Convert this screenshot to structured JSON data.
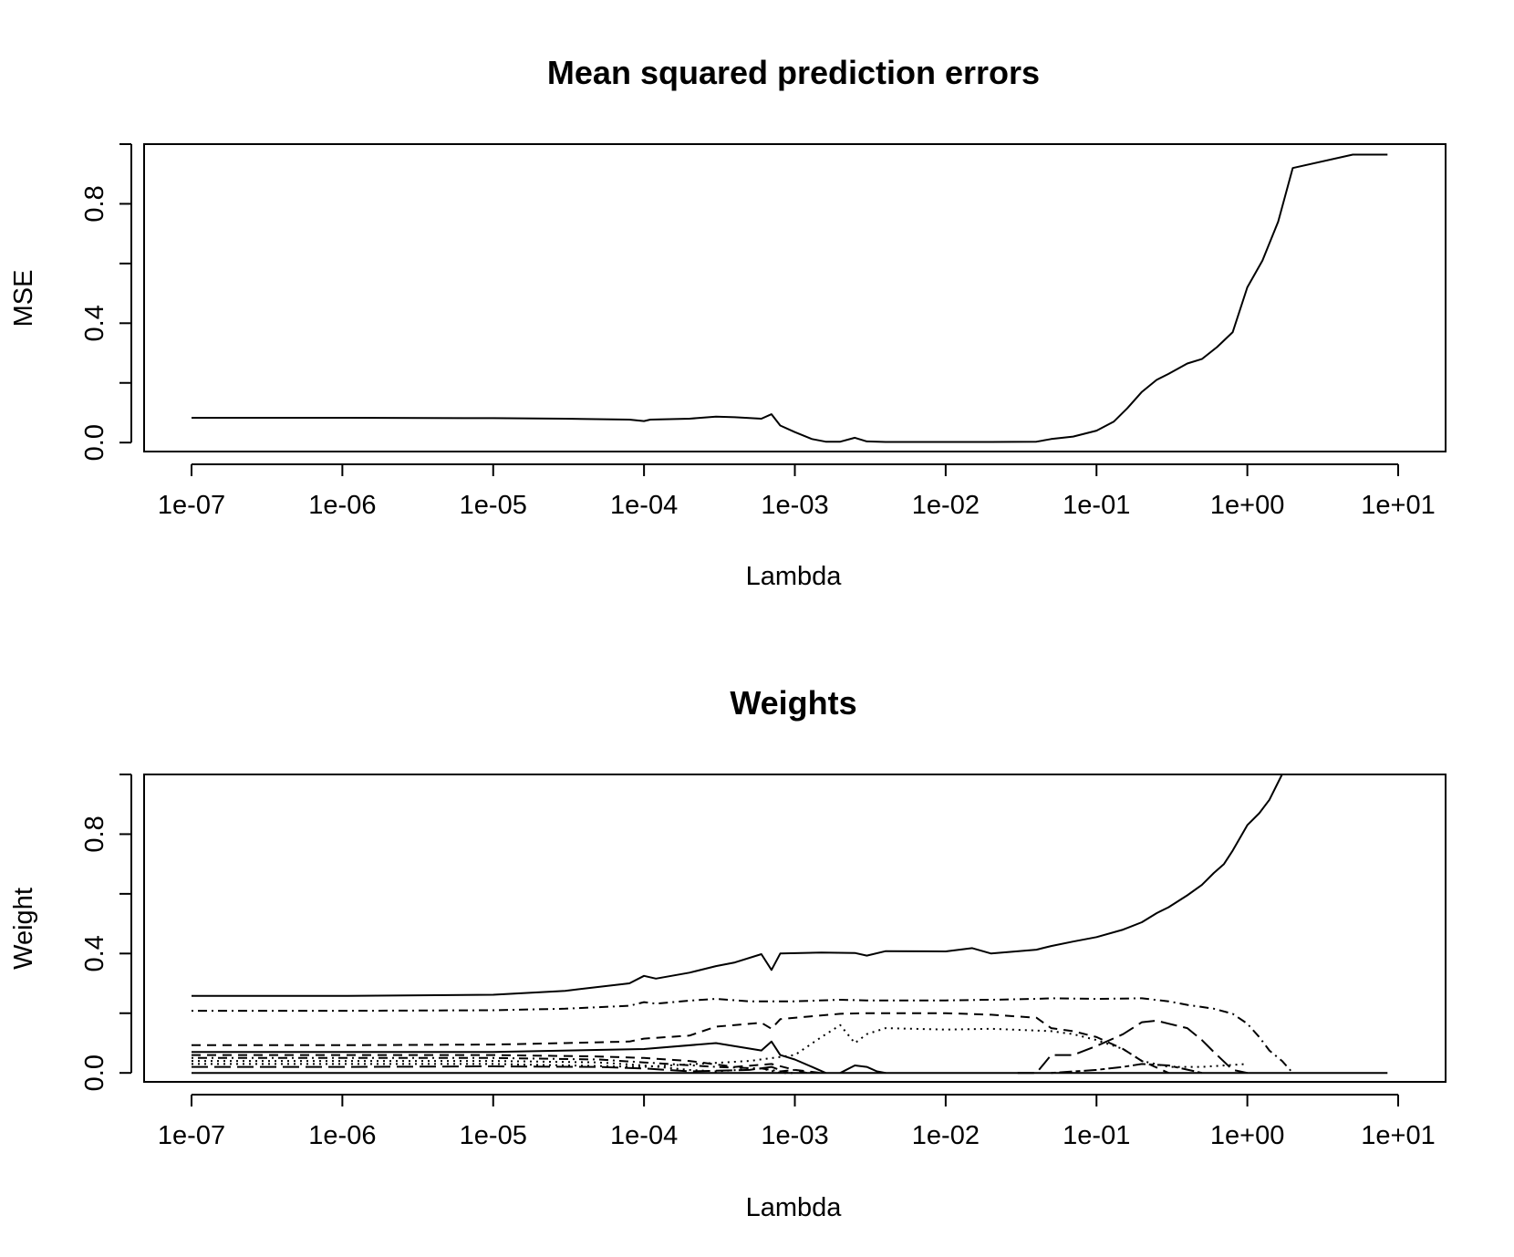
{
  "chart_data": [
    {
      "type": "line",
      "title": "Mean squared prediction errors",
      "xlabel": "Lambda",
      "ylabel": "MSE",
      "xscale": "log10",
      "xlim": [
        1e-07,
        10
      ],
      "ylim": [
        -0.03,
        1.0
      ],
      "xticks": [
        1e-07,
        1e-06,
        1e-05,
        0.0001,
        0.001,
        0.01,
        0.1,
        1,
        10
      ],
      "xtick_labels": [
        "1e-07",
        "1e-06",
        "1e-05",
        "1e-04",
        "1e-03",
        "1e-02",
        "1e-01",
        "1e+00",
        "1e+01"
      ],
      "yticks": [
        0.0,
        0.2,
        0.4,
        0.6,
        0.8,
        1.0
      ],
      "ytick_labels": [
        "0.0",
        "",
        "0.4",
        "",
        "0.8",
        ""
      ],
      "grid": false,
      "series": [
        {
          "line_style": "solid",
          "x": [
            1e-07,
            1e-06,
            1e-05,
            3e-05,
            8e-05,
            0.0001,
            0.00011,
            0.0002,
            0.0003,
            0.0004,
            0.0006,
            0.0007,
            0.0008,
            0.001,
            0.0013,
            0.0016,
            0.002,
            0.0025,
            0.003,
            0.004,
            0.01,
            0.02,
            0.04,
            0.05,
            0.07,
            0.1,
            0.13,
            0.16,
            0.2,
            0.25,
            0.3,
            0.4,
            0.5,
            0.63,
            0.8,
            1.0,
            1.26,
            1.6,
            2.0,
            5.0,
            8.5
          ],
          "y": [
            0.083,
            0.083,
            0.082,
            0.08,
            0.077,
            0.072,
            0.077,
            0.08,
            0.087,
            0.085,
            0.08,
            0.095,
            0.057,
            0.035,
            0.012,
            0.003,
            0.003,
            0.016,
            0.004,
            0.002,
            0.002,
            0.002,
            0.003,
            0.012,
            0.02,
            0.04,
            0.07,
            0.115,
            0.17,
            0.21,
            0.23,
            0.265,
            0.28,
            0.32,
            0.37,
            0.52,
            0.61,
            0.74,
            0.92,
            0.965,
            0.965
          ]
        }
      ]
    },
    {
      "type": "line",
      "title": "Weights",
      "xlabel": "Lambda",
      "ylabel": "Weight",
      "xscale": "log10",
      "xlim": [
        1e-07,
        10
      ],
      "ylim": [
        -0.03,
        1.0
      ],
      "xticks": [
        1e-07,
        1e-06,
        1e-05,
        0.0001,
        0.001,
        0.01,
        0.1,
        1,
        10
      ],
      "xtick_labels": [
        "1e-07",
        "1e-06",
        "1e-05",
        "1e-04",
        "1e-03",
        "1e-02",
        "1e-01",
        "1e+00",
        "1e+01"
      ],
      "yticks": [
        0.0,
        0.2,
        0.4,
        0.6,
        0.8,
        1.0
      ],
      "ytick_labels": [
        "0.0",
        "",
        "0.4",
        "",
        "0.8",
        ""
      ],
      "grid": false,
      "series": [
        {
          "line_style": "solid",
          "x": [
            1e-07,
            1e-06,
            1e-05,
            3e-05,
            8e-05,
            0.0001,
            0.00012,
            0.0002,
            0.0003,
            0.0004,
            0.0006,
            0.0007,
            0.0008,
            0.0015,
            0.0025,
            0.003,
            0.004,
            0.01,
            0.015,
            0.02,
            0.04,
            0.05,
            0.07,
            0.1,
            0.15,
            0.2,
            0.25,
            0.3,
            0.4,
            0.5,
            0.6,
            0.7,
            0.8,
            1.0,
            1.2,
            1.4,
            1.7,
            2.0,
            5.0,
            8.5
          ],
          "y": [
            0.258,
            0.258,
            0.262,
            0.275,
            0.3,
            0.325,
            0.316,
            0.336,
            0.358,
            0.37,
            0.398,
            0.345,
            0.4,
            0.403,
            0.402,
            0.393,
            0.408,
            0.407,
            0.418,
            0.4,
            0.413,
            0.425,
            0.44,
            0.455,
            0.48,
            0.505,
            0.535,
            0.555,
            0.595,
            0.63,
            0.67,
            0.7,
            0.745,
            0.83,
            0.87,
            0.915,
            1.0,
            1.0,
            1.0,
            1.0
          ]
        },
        {
          "line_style": "dotdash",
          "x": [
            1e-07,
            1e-06,
            1e-05,
            3e-05,
            8e-05,
            0.0001,
            0.00012,
            0.0002,
            0.0003,
            0.0005,
            0.001,
            0.002,
            0.003,
            0.01,
            0.02,
            0.04,
            0.05,
            0.1,
            0.2,
            0.3,
            0.4,
            0.6,
            0.8,
            1.0,
            1.2,
            1.4,
            1.7,
            2.0
          ],
          "y": [
            0.208,
            0.208,
            0.21,
            0.215,
            0.225,
            0.237,
            0.232,
            0.242,
            0.248,
            0.24,
            0.24,
            0.245,
            0.243,
            0.243,
            0.245,
            0.248,
            0.25,
            0.248,
            0.25,
            0.24,
            0.228,
            0.215,
            0.198,
            0.165,
            0.12,
            0.075,
            0.04,
            0.0
          ]
        },
        {
          "line_style": "dashed",
          "x": [
            1e-07,
            1e-06,
            1e-05,
            3e-05,
            8e-05,
            0.0001,
            0.0002,
            0.0003,
            0.0006,
            0.0007,
            0.0008,
            0.001,
            0.002,
            0.003,
            0.01,
            0.02,
            0.04,
            0.05,
            0.07,
            0.1,
            0.15,
            0.2,
            0.3
          ],
          "y": [
            0.093,
            0.093,
            0.095,
            0.1,
            0.105,
            0.115,
            0.125,
            0.155,
            0.168,
            0.148,
            0.18,
            0.185,
            0.198,
            0.2,
            0.2,
            0.195,
            0.185,
            0.15,
            0.14,
            0.12,
            0.08,
            0.04,
            0.0
          ]
        },
        {
          "line_style": "dotted",
          "x": [
            1e-07,
            1e-06,
            1e-05,
            0.0001,
            0.0005,
            0.001,
            0.0015,
            0.002,
            0.0025,
            0.003,
            0.004,
            0.01,
            0.02,
            0.05,
            0.07,
            0.1,
            0.15,
            0.2,
            0.3,
            0.5,
            1.0
          ],
          "y": [
            0.03,
            0.03,
            0.03,
            0.02,
            0.04,
            0.06,
            0.12,
            0.16,
            0.1,
            0.13,
            0.15,
            0.145,
            0.148,
            0.14,
            0.13,
            0.11,
            0.08,
            0.04,
            0.02,
            0.02,
            0.03
          ]
        },
        {
          "line_style": "solid",
          "x": [
            1e-07,
            1e-06,
            1e-05,
            0.0001,
            0.0003,
            0.0006,
            0.0007,
            0.0008,
            0.001,
            0.0013,
            0.0016
          ],
          "y": [
            0.07,
            0.07,
            0.07,
            0.08,
            0.1,
            0.075,
            0.105,
            0.06,
            0.045,
            0.02,
            0.0
          ]
        },
        {
          "line_style": "longdash",
          "x": [
            0.03,
            0.04,
            0.05,
            0.07,
            0.1,
            0.15,
            0.2,
            0.25,
            0.3,
            0.4,
            0.5,
            0.6,
            0.8,
            1.0
          ],
          "y": [
            0.0,
            0.0,
            0.06,
            0.06,
            0.09,
            0.13,
            0.17,
            0.175,
            0.165,
            0.15,
            0.11,
            0.07,
            0.01,
            0.0
          ]
        },
        {
          "line_style": "twodash",
          "x": [
            0.05,
            0.1,
            0.15,
            0.2,
            0.3,
            0.5
          ],
          "y": [
            0.0,
            0.01,
            0.02,
            0.03,
            0.025,
            0.0
          ]
        },
        {
          "line_style": "dashed",
          "x": [
            1e-07,
            1e-06,
            1e-05,
            5e-05,
            0.0001,
            0.0002,
            0.0004,
            0.0007,
            0.001,
            0.0015
          ],
          "y": [
            0.06,
            0.06,
            0.06,
            0.055,
            0.05,
            0.04,
            0.02,
            0.03,
            0.01,
            0.0
          ]
        },
        {
          "line_style": "dotdash",
          "x": [
            1e-07,
            1e-06,
            1e-05,
            5e-05,
            0.0001,
            0.0003,
            0.0006,
            0.0008,
            0.001,
            0.0012
          ],
          "y": [
            0.05,
            0.05,
            0.05,
            0.045,
            0.035,
            0.02,
            0.015,
            0.005,
            0.01,
            0.0
          ]
        },
        {
          "line_style": "dotted",
          "x": [
            1e-07,
            1e-06,
            1e-05,
            5e-05,
            0.0001,
            0.0002,
            0.0003,
            0.0006,
            0.0008,
            0.001
          ],
          "y": [
            0.04,
            0.04,
            0.04,
            0.035,
            0.025,
            0.01,
            0.005,
            0.015,
            0.0,
            0.0
          ]
        },
        {
          "line_style": "longdash",
          "x": [
            1e-07,
            1e-06,
            1e-05,
            5e-05,
            0.0001,
            0.0002,
            0.0005,
            0.0007,
            0.0009
          ],
          "y": [
            0.02,
            0.02,
            0.022,
            0.02,
            0.015,
            0.005,
            0.01,
            0.02,
            0.0
          ]
        },
        {
          "line_style": "solid",
          "x": [
            0.002,
            0.0025,
            0.003,
            0.0035,
            0.004
          ],
          "y": [
            0.0,
            0.025,
            0.02,
            0.005,
            0.0
          ]
        },
        {
          "line_style": "solid",
          "x": [
            1e-07,
            1e-06,
            1e-05,
            0.0001,
            0.001,
            0.01,
            0.1,
            1.0,
            5.0,
            8.5
          ],
          "y": [
            0.0,
            0.0,
            0.0,
            0.0,
            0.0,
            0.0,
            0.0,
            0.0,
            0.0,
            0.0
          ]
        }
      ]
    }
  ]
}
